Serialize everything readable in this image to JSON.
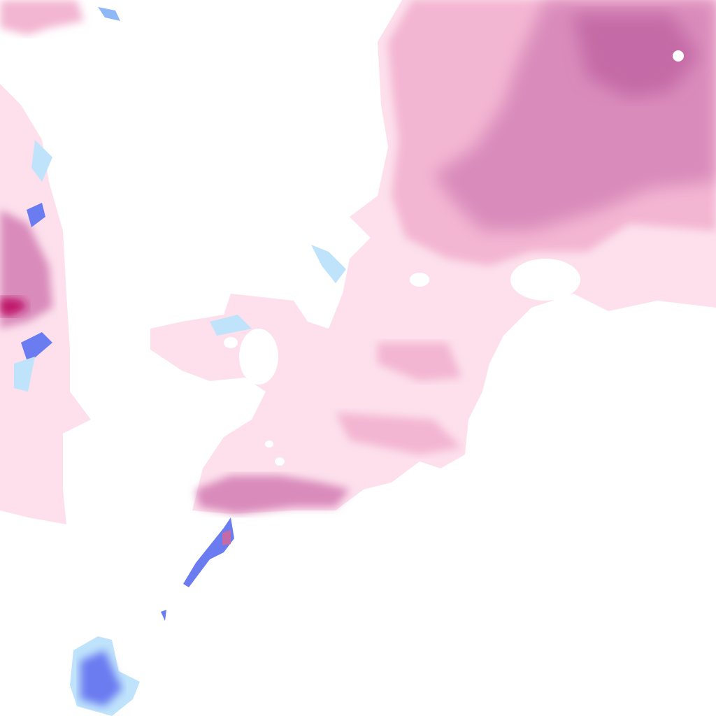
{
  "map": {
    "background": "#ffffff",
    "colors": {
      "snow_light": "#fde0ec",
      "snow_moderate": "#f3b6d2",
      "snow_heavy": "#d98bbb",
      "snow_very_heavy": "#c46aa6",
      "snow_extreme": "#c0146a",
      "rain_light": "#bfe3fb",
      "rain_moderate": "#8fb8f7",
      "rain_heavy": "#6a7cf0",
      "rain_very_heavy": "#4a55e0"
    }
  }
}
